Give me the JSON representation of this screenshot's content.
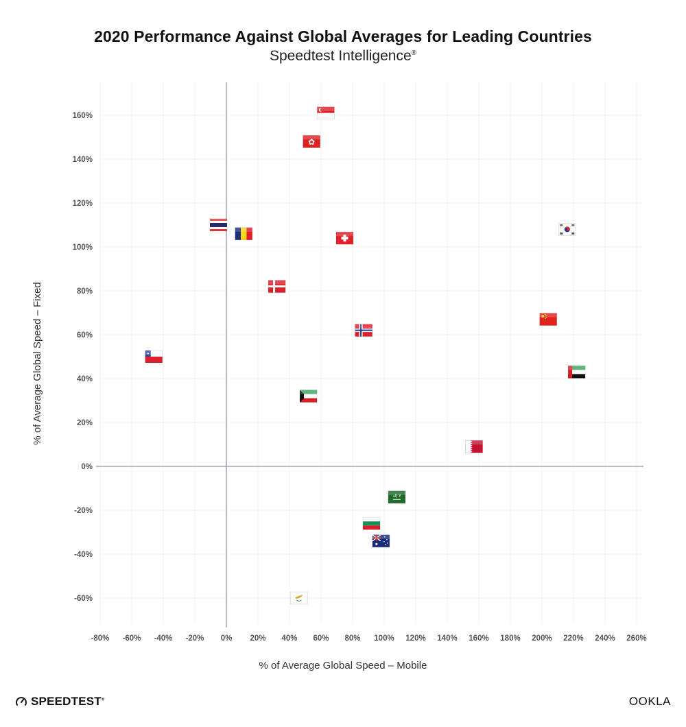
{
  "chart_data": {
    "type": "scatter",
    "title": "2020 Performance Against Global Averages for Leading Countries",
    "subtitle": "Speedtest Intelligence",
    "subtitle_mark": "®",
    "xlabel": "% of Average Global Speed – Mobile",
    "ylabel": "% of Average Global Speed – Fixed",
    "xlim": [
      -80,
      264
    ],
    "ylim": [
      -72,
      175
    ],
    "grid": true,
    "x_ticks": [
      -80,
      -60,
      -40,
      -20,
      0,
      20,
      40,
      60,
      80,
      100,
      120,
      140,
      160,
      180,
      200,
      220,
      240,
      260
    ],
    "y_ticks": [
      160,
      140,
      120,
      100,
      80,
      60,
      40,
      20,
      0,
      -20,
      -40,
      -60
    ],
    "tick_suffix": "%",
    "marker": "country-flag",
    "points": [
      {
        "country": "Singapore",
        "x": 63,
        "y": 161
      },
      {
        "country": "Hong Kong",
        "x": 54,
        "y": 148
      },
      {
        "country": "Thailand",
        "x": -5,
        "y": 110
      },
      {
        "country": "Romania",
        "x": 11,
        "y": 106
      },
      {
        "country": "Switzerland",
        "x": 75,
        "y": 104
      },
      {
        "country": "South Korea",
        "x": 216,
        "y": 108
      },
      {
        "country": "Denmark",
        "x": 32,
        "y": 82
      },
      {
        "country": "Norway",
        "x": 87,
        "y": 62
      },
      {
        "country": "China",
        "x": 204,
        "y": 67
      },
      {
        "country": "Chile",
        "x": -46,
        "y": 50
      },
      {
        "country": "United Arab Emirates",
        "x": 222,
        "y": 43
      },
      {
        "country": "Kuwait",
        "x": 52,
        "y": 32
      },
      {
        "country": "Qatar",
        "x": 157,
        "y": 9
      },
      {
        "country": "Saudi Arabia",
        "x": 108,
        "y": -14
      },
      {
        "country": "Bulgaria",
        "x": 92,
        "y": -26
      },
      {
        "country": "Australia",
        "x": 98,
        "y": -34
      },
      {
        "country": "Cyprus",
        "x": 46,
        "y": -60
      }
    ]
  },
  "branding": {
    "left_logo": "SPEEDTEST",
    "left_logo_icon": "speedometer-icon",
    "right_logo": "OOKLA",
    "trademark": "®"
  },
  "colors": {
    "axis_line": "#a3a3bb",
    "grid_line": "#f1f1f1",
    "tick_text": "#555555"
  }
}
